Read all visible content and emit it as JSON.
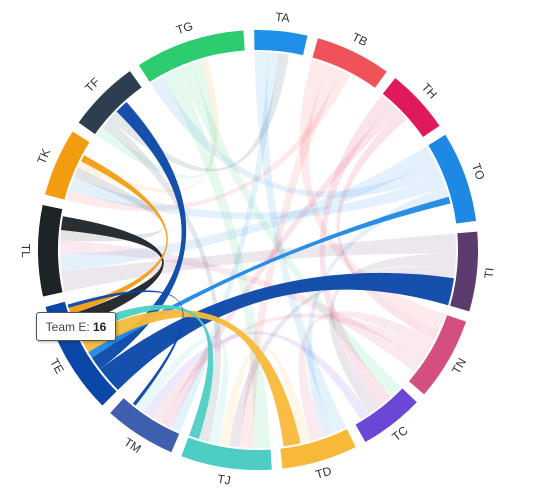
{
  "chart_data": {
    "type": "chord",
    "active": "TE",
    "nodes": [
      {
        "name": "TA",
        "color": "#1e90e8",
        "value": 14
      },
      {
        "name": "TB",
        "color": "#f0525a",
        "value": 20
      },
      {
        "name": "TH",
        "color": "#e0195a",
        "value": 17
      },
      {
        "name": "TO",
        "color": "#1e88e5",
        "value": 24
      },
      {
        "name": "TI",
        "color": "#5e3b6e",
        "value": 21
      },
      {
        "name": "TN",
        "color": "#d44f7f",
        "value": 22
      },
      {
        "name": "TC",
        "color": "#6b47d6",
        "value": 17
      },
      {
        "name": "TD",
        "color": "#f8b93a",
        "value": 20
      },
      {
        "name": "TJ",
        "color": "#4ecdc4",
        "value": 24
      },
      {
        "name": "TM",
        "color": "#3f5fae",
        "value": 19
      },
      {
        "name": "TE",
        "color": "#0a47a9",
        "value": 30
      },
      {
        "name": "TL",
        "color": "#1e2328",
        "value": 24
      },
      {
        "name": "TK",
        "color": "#f39c12",
        "value": 18
      },
      {
        "name": "TF",
        "color": "#2c3e50",
        "value": 19
      },
      {
        "name": "TG",
        "color": "#2ecc71",
        "value": 29
      }
    ],
    "links": [
      {
        "from": "TI",
        "to": "TL",
        "value": 6
      },
      {
        "from": "TO",
        "to": "TL",
        "value": 5
      },
      {
        "from": "TO",
        "to": "TG",
        "value": 4
      },
      {
        "from": "TG",
        "to": "TJ",
        "value": 5
      },
      {
        "from": "TG",
        "to": "TC",
        "value": 4
      },
      {
        "from": "TG",
        "to": "TF",
        "value": 3
      },
      {
        "from": "TA",
        "to": "TD",
        "value": 4
      },
      {
        "from": "TA",
        "to": "TM",
        "value": 3
      },
      {
        "from": "TB",
        "to": "TN",
        "value": 5
      },
      {
        "from": "TB",
        "to": "TJ",
        "value": 4
      },
      {
        "from": "TB",
        "to": "TK",
        "value": 3
      },
      {
        "from": "TH",
        "to": "TC",
        "value": 4
      },
      {
        "from": "TH",
        "to": "TM",
        "value": 3
      },
      {
        "from": "TH",
        "to": "TN",
        "value": 3
      },
      {
        "from": "TO",
        "to": "TK",
        "value": 4
      },
      {
        "from": "TO",
        "to": "TD",
        "value": 3
      },
      {
        "from": "TI",
        "to": "TC",
        "value": 4
      },
      {
        "from": "TI",
        "to": "TJ",
        "value": 3
      },
      {
        "from": "TN",
        "to": "TD",
        "value": 4
      },
      {
        "from": "TN",
        "to": "TM",
        "value": 3
      },
      {
        "from": "TN",
        "to": "TL",
        "value": 4
      },
      {
        "from": "TC",
        "to": "TM",
        "value": 3
      },
      {
        "from": "TD",
        "to": "TJ",
        "value": 3
      },
      {
        "from": "TJ",
        "to": "TM",
        "value": 3
      },
      {
        "from": "TL",
        "to": "TK",
        "value": 3
      },
      {
        "from": "TF",
        "to": "TJ",
        "value": 3
      },
      {
        "from": "TF",
        "to": "TA",
        "value": 3
      },
      {
        "from": "TK",
        "to": "TG",
        "value": 2
      },
      {
        "from": "TE",
        "to": "TI",
        "value": 8
      },
      {
        "from": "TE",
        "to": "TF",
        "value": 4
      },
      {
        "from": "TO",
        "to": "TE",
        "value": 2
      },
      {
        "from": "TD",
        "to": "TE",
        "value": 5
      },
      {
        "from": "TJ",
        "to": "TE",
        "value": 3
      },
      {
        "from": "TL",
        "to": "TE",
        "value": 4
      },
      {
        "from": "TK",
        "to": "TE",
        "value": 2
      },
      {
        "from": "TE",
        "to": "TM",
        "value": 1
      }
    ],
    "tooltip": {
      "label": "Team E:",
      "value": 16
    }
  }
}
